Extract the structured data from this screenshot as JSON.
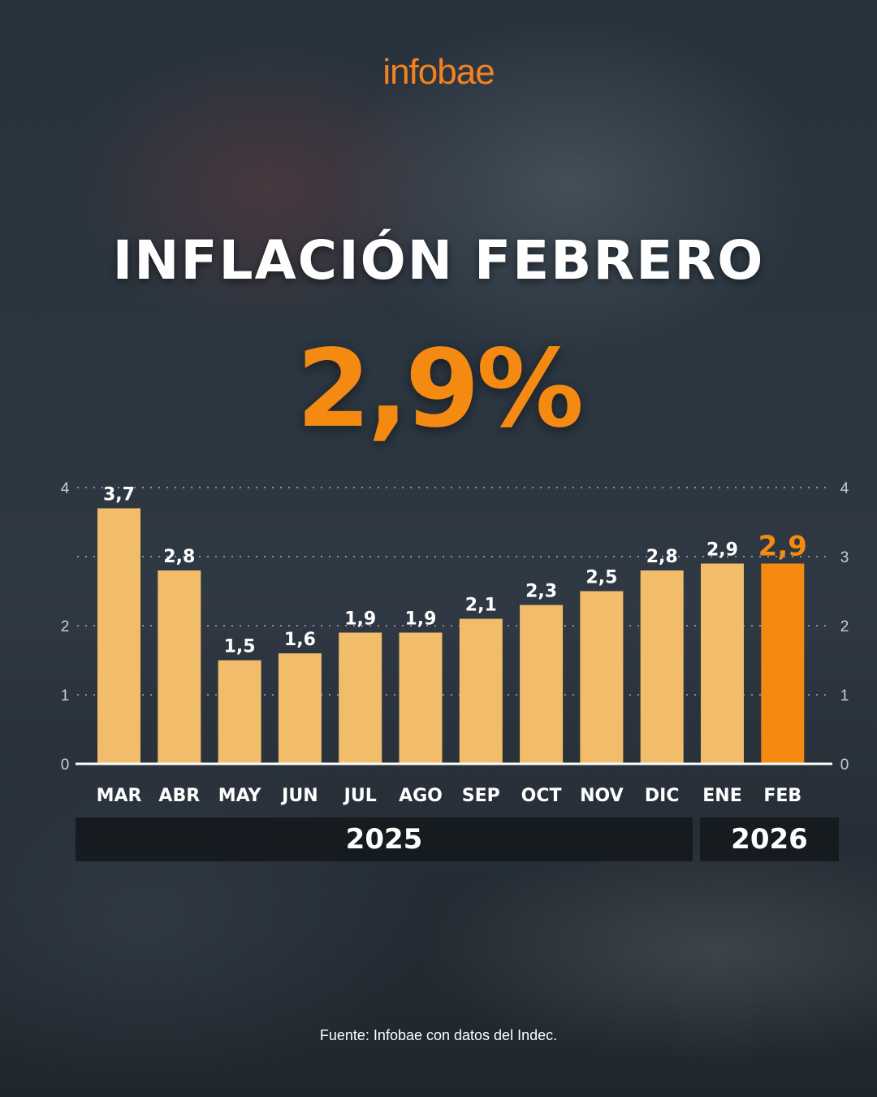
{
  "brand": "infobae",
  "title": "INFLACIÓN FEBRERO",
  "headline_value": "2,9%",
  "source": "Fuente: Infobae con datos del Indec.",
  "colors": {
    "brand": "#f58220",
    "bar": "#f2bd6b",
    "bar_highlight": "#f58a13",
    "text": "#ffffff"
  },
  "years": [
    {
      "label": "2025"
    },
    {
      "label": "2026"
    }
  ],
  "chart_data": {
    "type": "bar",
    "categories": [
      "MAR",
      "ABR",
      "MAY",
      "JUN",
      "JUL",
      "AGO",
      "SEP",
      "OCT",
      "NOV",
      "DIC",
      "ENE",
      "FEB"
    ],
    "values": [
      3.7,
      2.8,
      1.5,
      1.6,
      1.9,
      1.9,
      2.1,
      2.3,
      2.5,
      2.8,
      2.9,
      2.9
    ],
    "value_labels": [
      "3,7",
      "2,8",
      "1,5",
      "1,6",
      "1,9",
      "1,9",
      "2,1",
      "2,3",
      "2,5",
      "2,8",
      "2,9",
      "2,9"
    ],
    "highlight_index": 11,
    "ylim": [
      0,
      4
    ],
    "yticks": [
      0,
      1,
      2,
      3,
      4
    ],
    "y_axis_left_ticks": [
      0,
      1,
      2,
      4
    ],
    "y_axis_right_ticks": [
      0,
      1,
      2,
      3,
      4
    ],
    "grid": "dotted",
    "xlabel": "",
    "ylabel": ""
  }
}
